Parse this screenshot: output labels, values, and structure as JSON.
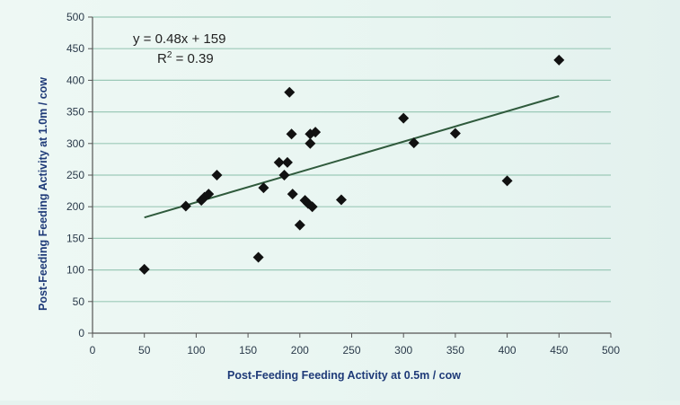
{
  "chart_data": {
    "type": "scatter",
    "xlabel": "Post-Feeding Feeding Activity at 0.5m / cow",
    "ylabel": "Post-Feeding Feeding Activity at 1.0m / cow",
    "xlim": [
      0,
      500
    ],
    "ylim": [
      0,
      500
    ],
    "x_ticks": [
      "0",
      "50",
      "100",
      "150",
      "200",
      "250",
      "300",
      "350",
      "400",
      "450",
      "500"
    ],
    "y_ticks": [
      "0",
      "50",
      "100",
      "150",
      "200",
      "250",
      "300",
      "350",
      "400",
      "450",
      "500"
    ],
    "grid": "horizontal",
    "legend": "none",
    "marker": "diamond",
    "marker_color": "#111111",
    "trendline_color": "#2f5a3c",
    "gridline_color": "#9cc9b8",
    "trendline": {
      "slope": 0.48,
      "intercept": 159,
      "x_range": [
        50,
        450
      ]
    },
    "annotations": {
      "equation": "y = 0.48x + 159",
      "r_squared_prefix": "R",
      "r_squared_sup": "2",
      "r_squared_suffix": " = 0.39"
    },
    "points": [
      {
        "x": 50,
        "y": 101
      },
      {
        "x": 90,
        "y": 201
      },
      {
        "x": 105,
        "y": 210
      },
      {
        "x": 108,
        "y": 215
      },
      {
        "x": 112,
        "y": 220
      },
      {
        "x": 120,
        "y": 250
      },
      {
        "x": 160,
        "y": 120
      },
      {
        "x": 165,
        "y": 230
      },
      {
        "x": 180,
        "y": 270
      },
      {
        "x": 185,
        "y": 250
      },
      {
        "x": 188,
        "y": 270
      },
      {
        "x": 190,
        "y": 381
      },
      {
        "x": 192,
        "y": 315
      },
      {
        "x": 193,
        "y": 220
      },
      {
        "x": 200,
        "y": 171
      },
      {
        "x": 205,
        "y": 210
      },
      {
        "x": 208,
        "y": 205
      },
      {
        "x": 210,
        "y": 300
      },
      {
        "x": 210,
        "y": 315
      },
      {
        "x": 212,
        "y": 200
      },
      {
        "x": 215,
        "y": 318
      },
      {
        "x": 240,
        "y": 211
      },
      {
        "x": 300,
        "y": 340
      },
      {
        "x": 310,
        "y": 301
      },
      {
        "x": 350,
        "y": 316
      },
      {
        "x": 400,
        "y": 241
      },
      {
        "x": 450,
        "y": 432
      }
    ]
  }
}
